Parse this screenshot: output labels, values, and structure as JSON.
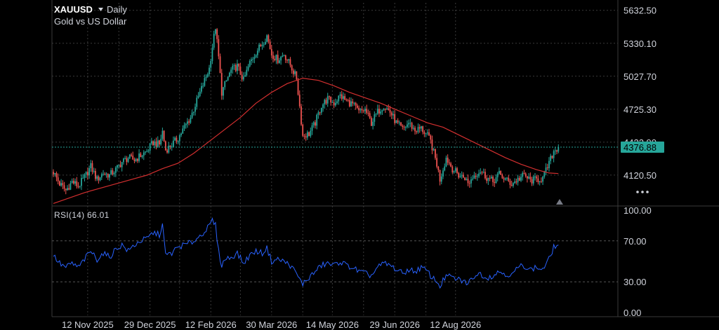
{
  "header": {
    "symbol": "XAUUSD",
    "interval": "Daily",
    "subtitle": "Gold vs US Dollar",
    "dropdown_icon": "caret-down-icon"
  },
  "rsi_panel": {
    "label": "RSI(14) 66.01",
    "current": 66.01
  },
  "colors": {
    "background": "#000000",
    "grid": "#3a3a3a",
    "up": "#26a69a",
    "down": "#ef5350",
    "ma_line": "#d32f2f",
    "rsi_line": "#2962ff",
    "rsi_band": "#555555",
    "price_tag": "#26a69a",
    "text": "#d1d4dc"
  },
  "more_icon": "more-dots-icon",
  "warning_icon": "triangle-marker-icon",
  "chart_data": [
    {
      "type": "candlestick",
      "title": "XAUUSD",
      "subtitle": "Gold vs US Dollar",
      "price_ticks": [
        "5632.50",
        "5330.10",
        "5027.70",
        "4725.30",
        "4422.90",
        "4120.50"
      ],
      "price_tick_values": [
        5632.5,
        5330.1,
        5027.7,
        4725.3,
        4422.9,
        4120.5
      ],
      "ylim": [
        3850,
        5650
      ],
      "x_ticks": [
        "12 Nov 2025",
        "29 Dec 2025",
        "12 Feb 2026",
        "30 Mar 2026",
        "14 May 2026",
        "29 Jun 2026",
        "12 Aug 2026"
      ],
      "last_price": "4376.88",
      "last_price_value": 4376.88,
      "grid": true,
      "close_path": [
        [
          0,
          4150
        ],
        [
          4,
          4040
        ],
        [
          8,
          3980
        ],
        [
          12,
          4060
        ],
        [
          16,
          4020
        ],
        [
          20,
          4100
        ],
        [
          24,
          4200
        ],
        [
          28,
          4080
        ],
        [
          32,
          4140
        ],
        [
          36,
          4120
        ],
        [
          40,
          4170
        ],
        [
          44,
          4240
        ],
        [
          48,
          4280
        ],
        [
          52,
          4260
        ],
        [
          56,
          4300
        ],
        [
          60,
          4340
        ],
        [
          64,
          4420
        ],
        [
          68,
          4400
        ],
        [
          70,
          4520
        ],
        [
          72,
          4350
        ],
        [
          76,
          4400
        ],
        [
          80,
          4460
        ],
        [
          84,
          4560
        ],
        [
          88,
          4650
        ],
        [
          92,
          4800
        ],
        [
          96,
          4950
        ],
        [
          100,
          5100
        ],
        [
          102,
          5300
        ],
        [
          104,
          5480
        ],
        [
          106,
          5200
        ],
        [
          108,
          4880
        ],
        [
          110,
          4950
        ],
        [
          112,
          5020
        ],
        [
          114,
          5080
        ],
        [
          118,
          5120
        ],
        [
          122,
          4990
        ],
        [
          126,
          5150
        ],
        [
          130,
          5250
        ],
        [
          134,
          5330
        ],
        [
          137,
          5400
        ],
        [
          140,
          5230
        ],
        [
          144,
          5180
        ],
        [
          148,
          5230
        ],
        [
          152,
          5130
        ],
        [
          156,
          5010
        ],
        [
          158,
          4750
        ],
        [
          160,
          4480
        ],
        [
          164,
          4500
        ],
        [
          168,
          4600
        ],
        [
          172,
          4760
        ],
        [
          176,
          4820
        ],
        [
          180,
          4780
        ],
        [
          184,
          4850
        ],
        [
          188,
          4800
        ],
        [
          192,
          4770
        ],
        [
          196,
          4700
        ],
        [
          200,
          4720
        ],
        [
          204,
          4600
        ],
        [
          208,
          4700
        ],
        [
          212,
          4760
        ],
        [
          216,
          4700
        ],
        [
          220,
          4600
        ],
        [
          224,
          4540
        ],
        [
          228,
          4600
        ],
        [
          232,
          4530
        ],
        [
          236,
          4550
        ],
        [
          240,
          4480
        ],
        [
          242,
          4430
        ],
        [
          246,
          4220
        ],
        [
          248,
          4080
        ],
        [
          252,
          4280
        ],
        [
          256,
          4180
        ],
        [
          260,
          4120
        ],
        [
          264,
          4100
        ],
        [
          266,
          4040
        ],
        [
          270,
          4120
        ],
        [
          274,
          4160
        ],
        [
          278,
          4100
        ],
        [
          282,
          4060
        ],
        [
          286,
          4130
        ],
        [
          290,
          4080
        ],
        [
          294,
          4040
        ],
        [
          298,
          4080
        ],
        [
          302,
          4120
        ],
        [
          306,
          4070
        ],
        [
          310,
          4080
        ],
        [
          314,
          4090
        ],
        [
          318,
          4230
        ],
        [
          321,
          4340
        ],
        [
          324,
          4377
        ]
      ],
      "ma_path": [
        [
          0,
          3860
        ],
        [
          20,
          3960
        ],
        [
          40,
          4040
        ],
        [
          60,
          4120
        ],
        [
          70,
          4180
        ],
        [
          80,
          4230
        ],
        [
          90,
          4320
        ],
        [
          100,
          4430
        ],
        [
          110,
          4540
        ],
        [
          120,
          4650
        ],
        [
          130,
          4780
        ],
        [
          140,
          4880
        ],
        [
          150,
          4960
        ],
        [
          160,
          5010
        ],
        [
          170,
          4990
        ],
        [
          180,
          4940
        ],
        [
          190,
          4880
        ],
        [
          200,
          4830
        ],
        [
          210,
          4780
        ],
        [
          220,
          4720
        ],
        [
          230,
          4660
        ],
        [
          240,
          4600
        ],
        [
          250,
          4560
        ],
        [
          260,
          4490
        ],
        [
          270,
          4420
        ],
        [
          280,
          4350
        ],
        [
          290,
          4280
        ],
        [
          300,
          4220
        ],
        [
          310,
          4170
        ],
        [
          318,
          4140
        ],
        [
          324,
          4135
        ]
      ],
      "x_tick_positions": [
        22,
        62,
        101,
        140,
        179,
        219,
        258
      ]
    },
    {
      "type": "line",
      "title": "RSI(14)",
      "value": 66.01,
      "y_ticks": [
        "100.00",
        "70.00",
        "30.00",
        "0.00"
      ],
      "y_tick_values": [
        100,
        70,
        30,
        0
      ],
      "bands": [
        70,
        30
      ],
      "ylim": [
        0,
        100
      ],
      "path": [
        [
          0,
          56
        ],
        [
          4,
          48
        ],
        [
          8,
          44
        ],
        [
          12,
          48
        ],
        [
          16,
          44
        ],
        [
          20,
          52
        ],
        [
          24,
          60
        ],
        [
          28,
          52
        ],
        [
          32,
          58
        ],
        [
          36,
          54
        ],
        [
          40,
          62
        ],
        [
          44,
          66
        ],
        [
          48,
          60
        ],
        [
          52,
          66
        ],
        [
          56,
          70
        ],
        [
          60,
          72
        ],
        [
          64,
          78
        ],
        [
          68,
          76
        ],
        [
          70,
          86
        ],
        [
          72,
          56
        ],
        [
          76,
          58
        ],
        [
          80,
          64
        ],
        [
          84,
          66
        ],
        [
          88,
          68
        ],
        [
          92,
          72
        ],
        [
          96,
          78
        ],
        [
          100,
          84
        ],
        [
          102,
          90
        ],
        [
          104,
          85
        ],
        [
          106,
          60
        ],
        [
          108,
          46
        ],
        [
          110,
          52
        ],
        [
          114,
          54
        ],
        [
          118,
          58
        ],
        [
          122,
          48
        ],
        [
          126,
          56
        ],
        [
          130,
          60
        ],
        [
          134,
          58
        ],
        [
          137,
          63
        ],
        [
          140,
          50
        ],
        [
          144,
          52
        ],
        [
          148,
          50
        ],
        [
          152,
          46
        ],
        [
          156,
          38
        ],
        [
          158,
          32
        ],
        [
          160,
          28
        ],
        [
          164,
          34
        ],
        [
          168,
          40
        ],
        [
          172,
          46
        ],
        [
          176,
          48
        ],
        [
          180,
          46
        ],
        [
          184,
          50
        ],
        [
          188,
          46
        ],
        [
          192,
          44
        ],
        [
          196,
          40
        ],
        [
          200,
          38
        ],
        [
          204,
          36
        ],
        [
          208,
          44
        ],
        [
          212,
          48
        ],
        [
          216,
          46
        ],
        [
          220,
          42
        ],
        [
          224,
          38
        ],
        [
          228,
          42
        ],
        [
          232,
          40
        ],
        [
          236,
          44
        ],
        [
          240,
          40
        ],
        [
          242,
          36
        ],
        [
          246,
          30
        ],
        [
          248,
          26
        ],
        [
          252,
          36
        ],
        [
          256,
          34
        ],
        [
          260,
          32
        ],
        [
          264,
          30
        ],
        [
          266,
          28
        ],
        [
          270,
          36
        ],
        [
          274,
          38
        ],
        [
          278,
          34
        ],
        [
          282,
          36
        ],
        [
          286,
          40
        ],
        [
          290,
          38
        ],
        [
          294,
          36
        ],
        [
          298,
          44
        ],
        [
          302,
          46
        ],
        [
          306,
          42
        ],
        [
          310,
          44
        ],
        [
          314,
          42
        ],
        [
          318,
          52
        ],
        [
          321,
          64
        ],
        [
          324,
          66
        ]
      ]
    }
  ]
}
